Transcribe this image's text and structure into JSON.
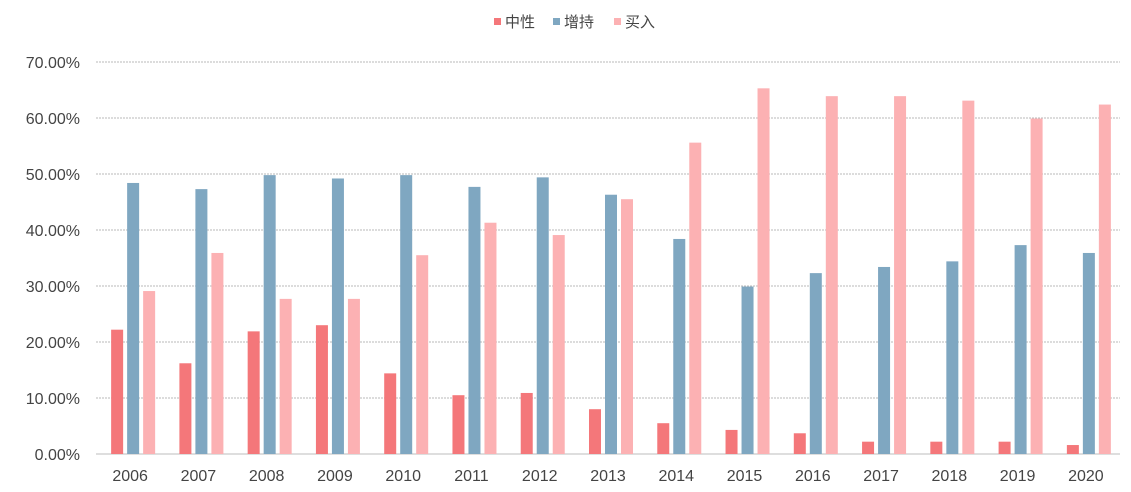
{
  "chart_data": {
    "type": "bar",
    "title": "",
    "xlabel": "",
    "ylabel": "",
    "categories": [
      "2006",
      "2007",
      "2008",
      "2009",
      "2010",
      "2011",
      "2012",
      "2013",
      "2014",
      "2015",
      "2016",
      "2017",
      "2018",
      "2019",
      "2020"
    ],
    "series": [
      {
        "name": "中性",
        "color": "#f4777a",
        "values": [
          22.2,
          16.2,
          21.9,
          23.0,
          14.4,
          10.5,
          10.9,
          8.0,
          5.5,
          4.3,
          3.7,
          2.2,
          2.2,
          2.2,
          1.6
        ]
      },
      {
        "name": "增持",
        "color": "#7fa7c1",
        "values": [
          48.4,
          47.3,
          49.8,
          49.2,
          49.8,
          47.7,
          49.4,
          46.3,
          38.4,
          29.9,
          32.3,
          33.4,
          34.4,
          37.3,
          35.9
        ]
      },
      {
        "name": "买入",
        "color": "#fcb1b3",
        "values": [
          29.1,
          35.9,
          27.7,
          27.7,
          35.5,
          41.3,
          39.1,
          45.5,
          55.6,
          65.3,
          63.9,
          63.9,
          63.1,
          59.9,
          62.4
        ]
      }
    ],
    "ylim": [
      0,
      70
    ],
    "yticks": [
      "0.00%",
      "10.00%",
      "20.00%",
      "30.00%",
      "40.00%",
      "50.00%",
      "60.00%",
      "70.00%"
    ],
    "grid": true,
    "legend_position": "top-center"
  }
}
